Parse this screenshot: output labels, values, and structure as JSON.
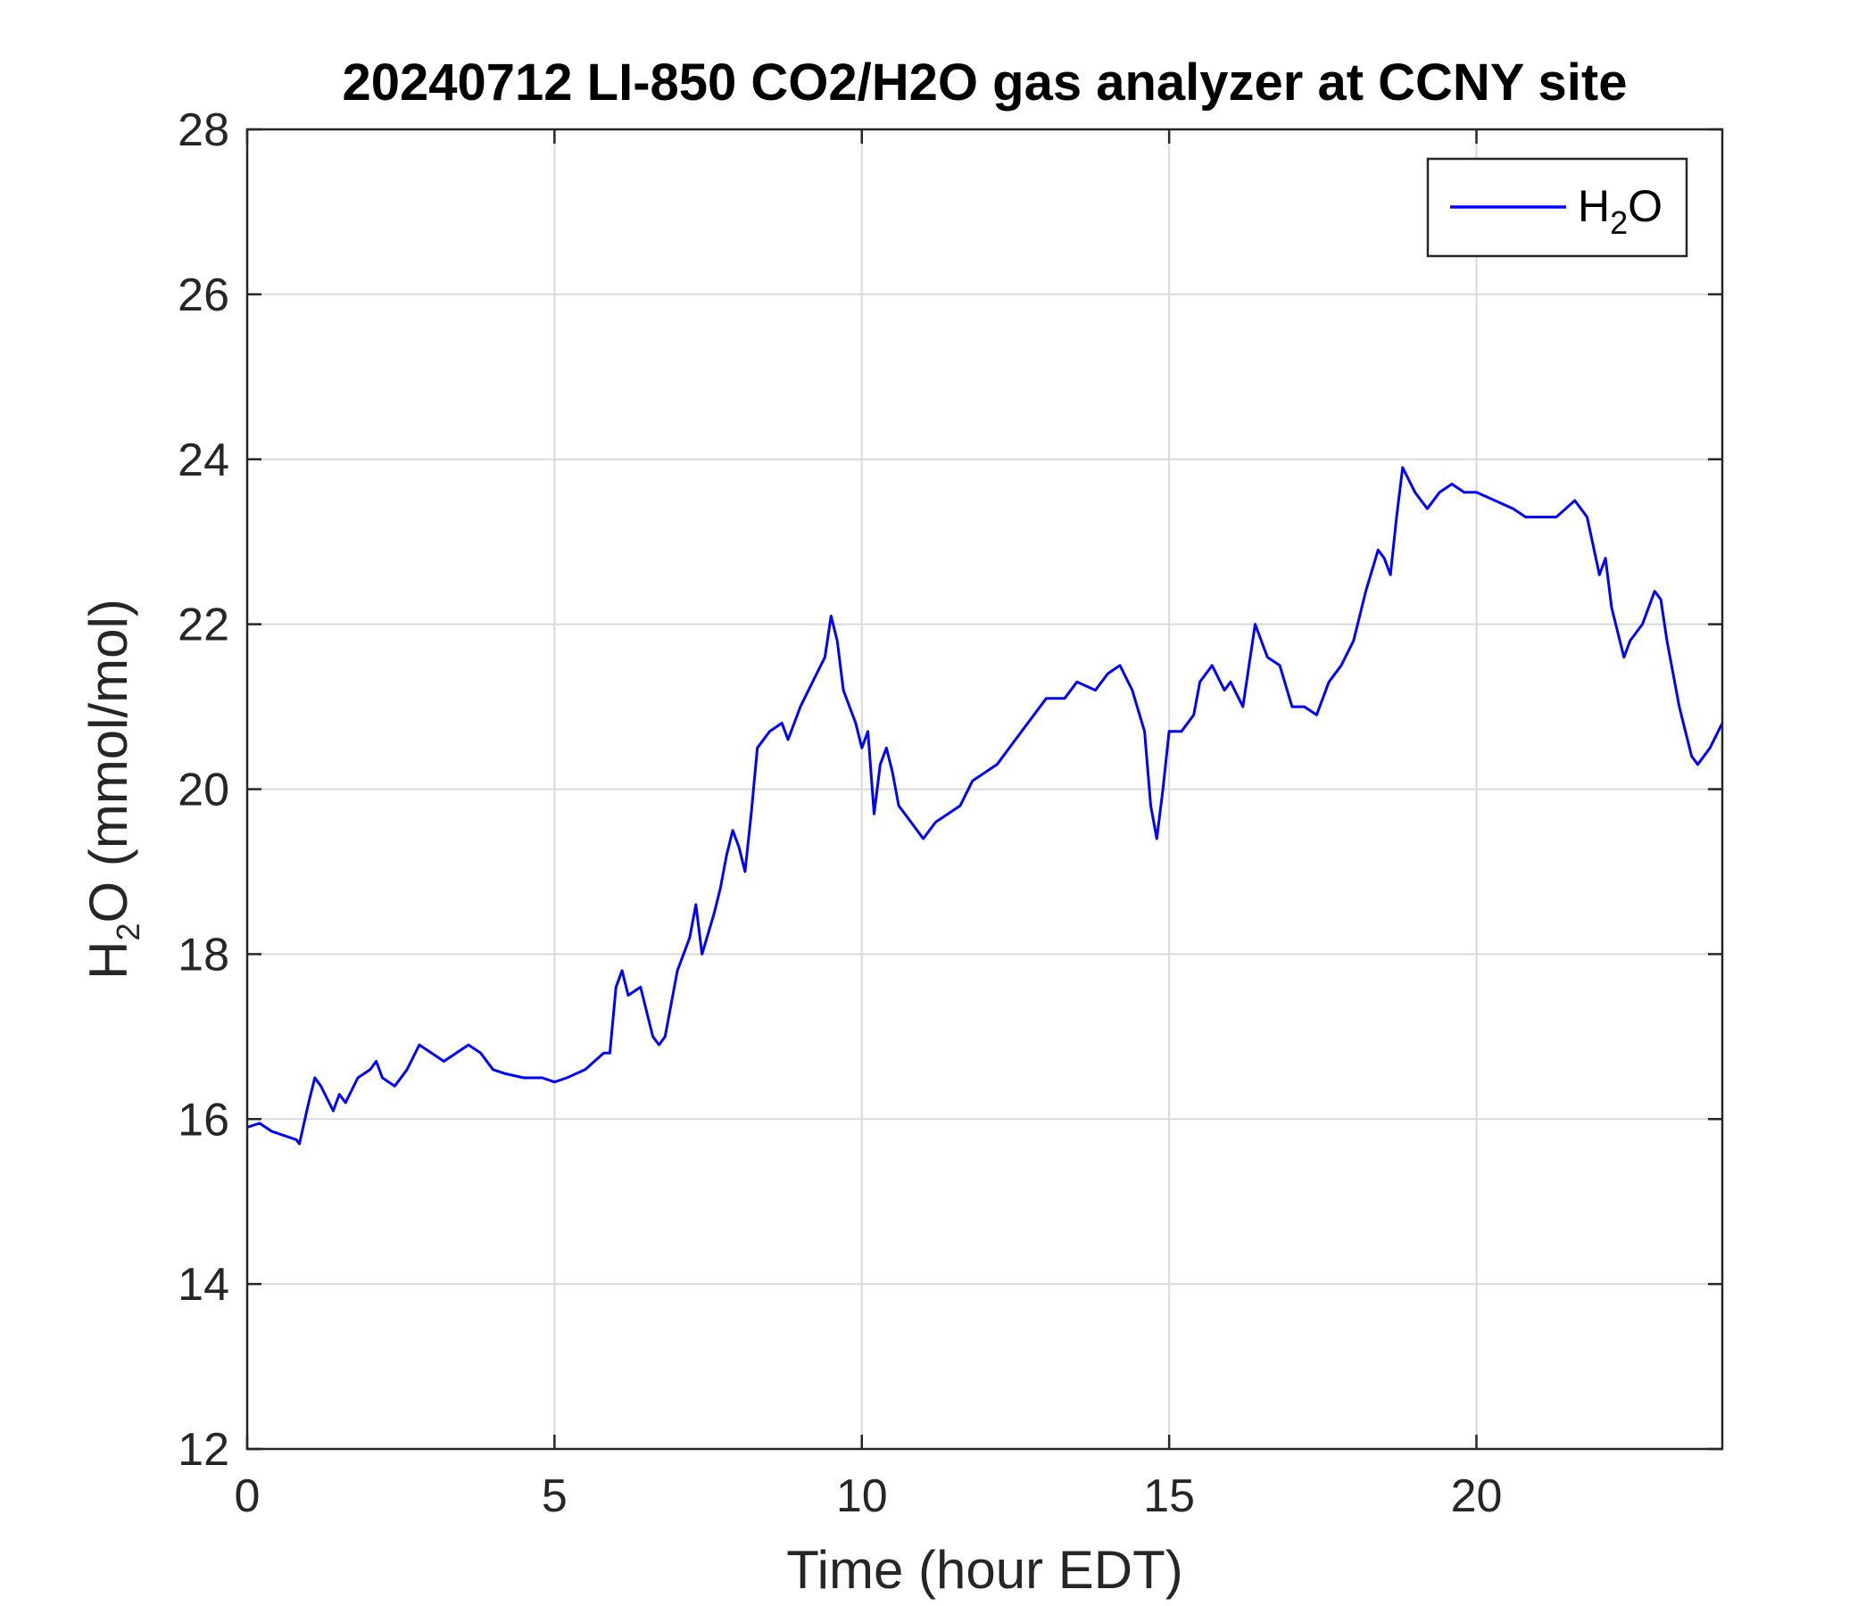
{
  "chart_data": {
    "type": "line",
    "title": "20240712 LI-850 CO2/H2O gas analyzer at CCNY site",
    "xlabel": "Time (hour EDT)",
    "ylabel": {
      "main": "H",
      "sub": "2",
      "rest": "O (mmol/mol)"
    },
    "xlim": [
      0,
      24
    ],
    "ylim": [
      12,
      28
    ],
    "xticks": [
      0,
      5,
      10,
      15,
      20
    ],
    "yticks": [
      12,
      14,
      16,
      18,
      20,
      22,
      24,
      26,
      28
    ],
    "grid": true,
    "legend": {
      "position": "top-right",
      "entries": [
        {
          "main": "H",
          "sub": "2",
          "rest": "O"
        }
      ]
    },
    "series": [
      {
        "name": "H2O",
        "color": "#0000ff",
        "x": [
          0,
          0.2,
          0.4,
          0.6,
          0.8,
          0.85,
          1.0,
          1.1,
          1.2,
          1.4,
          1.5,
          1.6,
          1.8,
          2.0,
          2.1,
          2.2,
          2.4,
          2.6,
          2.8,
          3.0,
          3.2,
          3.4,
          3.6,
          3.8,
          4.0,
          4.2,
          4.5,
          4.8,
          5.0,
          5.2,
          5.5,
          5.8,
          5.9,
          6.0,
          6.1,
          6.2,
          6.4,
          6.5,
          6.6,
          6.7,
          6.8,
          7.0,
          7.2,
          7.3,
          7.4,
          7.6,
          7.7,
          7.8,
          7.9,
          8.0,
          8.1,
          8.2,
          8.3,
          8.5,
          8.7,
          8.8,
          9.0,
          9.2,
          9.4,
          9.5,
          9.6,
          9.7,
          9.8,
          9.9,
          10.0,
          10.1,
          10.2,
          10.3,
          10.4,
          10.5,
          10.6,
          10.8,
          11.0,
          11.2,
          11.4,
          11.6,
          11.8,
          12.0,
          12.2,
          12.5,
          12.8,
          13.0,
          13.3,
          13.5,
          13.8,
          14.0,
          14.2,
          14.4,
          14.6,
          14.7,
          14.8,
          14.9,
          15.0,
          15.2,
          15.4,
          15.5,
          15.7,
          15.9,
          16.0,
          16.2,
          16.4,
          16.6,
          16.8,
          17.0,
          17.2,
          17.4,
          17.6,
          17.8,
          18.0,
          18.2,
          18.4,
          18.5,
          18.6,
          18.7,
          18.8,
          19.0,
          19.2,
          19.4,
          19.6,
          19.8,
          20.0,
          20.3,
          20.6,
          20.8,
          21.0,
          21.3,
          21.6,
          21.8,
          22.0,
          22.1,
          22.2,
          22.4,
          22.5,
          22.6,
          22.7,
          22.9,
          23.0,
          23.1,
          23.2,
          23.3,
          23.4,
          23.5,
          23.6,
          23.8,
          24.0
        ],
        "y": [
          15.9,
          15.95,
          15.85,
          15.8,
          15.75,
          15.7,
          16.2,
          16.5,
          16.4,
          16.1,
          16.3,
          16.2,
          16.5,
          16.6,
          16.7,
          16.5,
          16.4,
          16.6,
          16.9,
          16.8,
          16.7,
          16.8,
          16.9,
          16.8,
          16.6,
          16.55,
          16.5,
          16.5,
          16.45,
          16.5,
          16.6,
          16.8,
          16.8,
          17.6,
          17.8,
          17.5,
          17.6,
          17.3,
          17.0,
          16.9,
          17.0,
          17.8,
          18.2,
          18.6,
          18.0,
          18.5,
          18.8,
          19.2,
          19.5,
          19.3,
          19.0,
          19.7,
          20.5,
          20.7,
          20.8,
          20.6,
          21.0,
          21.3,
          21.6,
          22.1,
          21.8,
          21.2,
          21.0,
          20.8,
          20.5,
          20.7,
          19.7,
          20.3,
          20.5,
          20.2,
          19.8,
          19.6,
          19.4,
          19.6,
          19.7,
          19.8,
          20.1,
          20.2,
          20.3,
          20.6,
          20.9,
          21.1,
          21.1,
          21.3,
          21.2,
          21.4,
          21.5,
          21.2,
          20.7,
          19.8,
          19.4,
          20.0,
          20.7,
          20.7,
          20.9,
          21.3,
          21.5,
          21.2,
          21.3,
          21.0,
          22.0,
          21.6,
          21.5,
          21.0,
          21.0,
          20.9,
          21.3,
          21.5,
          21.8,
          22.4,
          22.9,
          22.8,
          22.6,
          23.3,
          23.9,
          23.6,
          23.4,
          23.6,
          23.7,
          23.6,
          23.6,
          23.5,
          23.4,
          23.3,
          23.3,
          23.3,
          23.5,
          23.3,
          22.6,
          22.8,
          22.2,
          21.6,
          21.8,
          21.9,
          22.0,
          22.4,
          22.3,
          21.8,
          21.4,
          21.0,
          20.7,
          20.4,
          20.3,
          20.5,
          20.8
        ]
      }
    ]
  }
}
